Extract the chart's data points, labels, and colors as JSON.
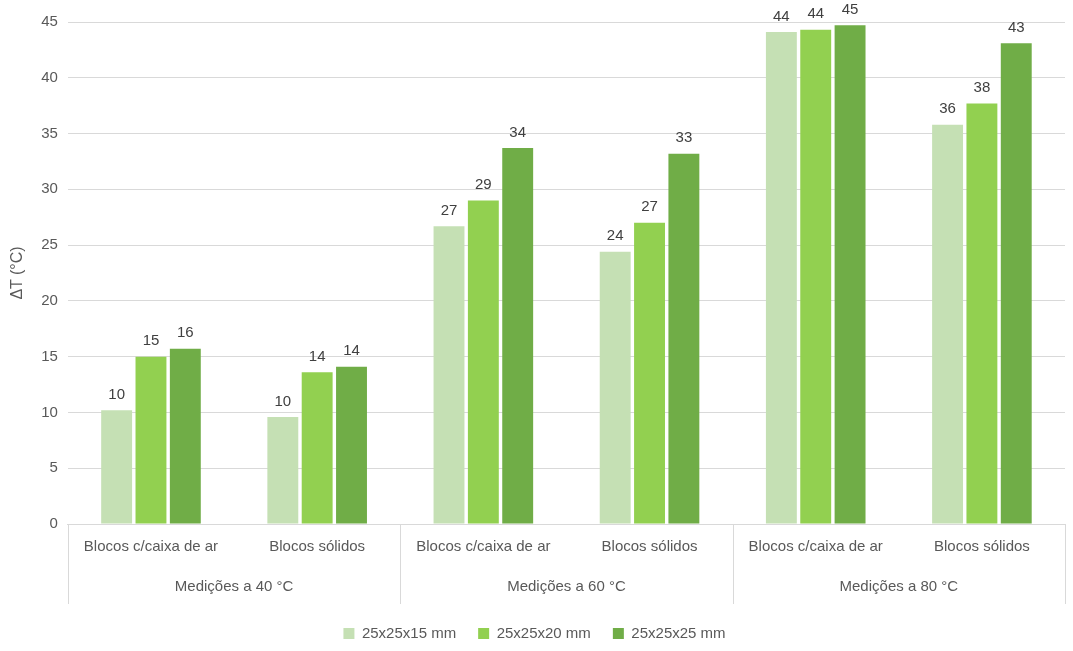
{
  "chart_data": {
    "type": "bar",
    "ylabel": "ΔT (°C)",
    "categories": [
      "Blocos c/caixa de ar",
      "Blocos sólidos",
      "Blocos c/caixa de ar",
      "Blocos sólidos",
      "Blocos c/caixa de ar",
      "Blocos sólidos"
    ],
    "series": [
      {
        "name": "25x25x15 mm",
        "color": "#c5e0b4",
        "values": [
          10.2,
          9.6,
          26.7,
          24.4,
          44.1,
          35.8
        ],
        "value_labels": [
          "10",
          "10",
          "27",
          "24",
          "44",
          "36"
        ]
      },
      {
        "name": "25x25x20 mm",
        "color": "#92d050",
        "values": [
          15.0,
          13.6,
          29.0,
          27.0,
          44.3,
          37.7
        ],
        "value_labels": [
          "15",
          "14",
          "29",
          "27",
          "44",
          "38"
        ]
      },
      {
        "name": "25x25x25 mm",
        "color": "#70ad47",
        "values": [
          15.7,
          14.1,
          33.7,
          33.2,
          44.7,
          43.1
        ],
        "value_labels": [
          "16",
          "14",
          "34",
          "33",
          "45",
          "43"
        ]
      }
    ],
    "annotations": [
      "Medições a 40 °C",
      "Medições a 60 °C",
      "Medições a 80 °C"
    ],
    "ylim": [
      0,
      45
    ],
    "yticks": [
      0,
      5,
      10,
      15,
      20,
      25,
      30,
      35,
      40,
      45
    ],
    "grid": "y",
    "legend": "bottom"
  }
}
